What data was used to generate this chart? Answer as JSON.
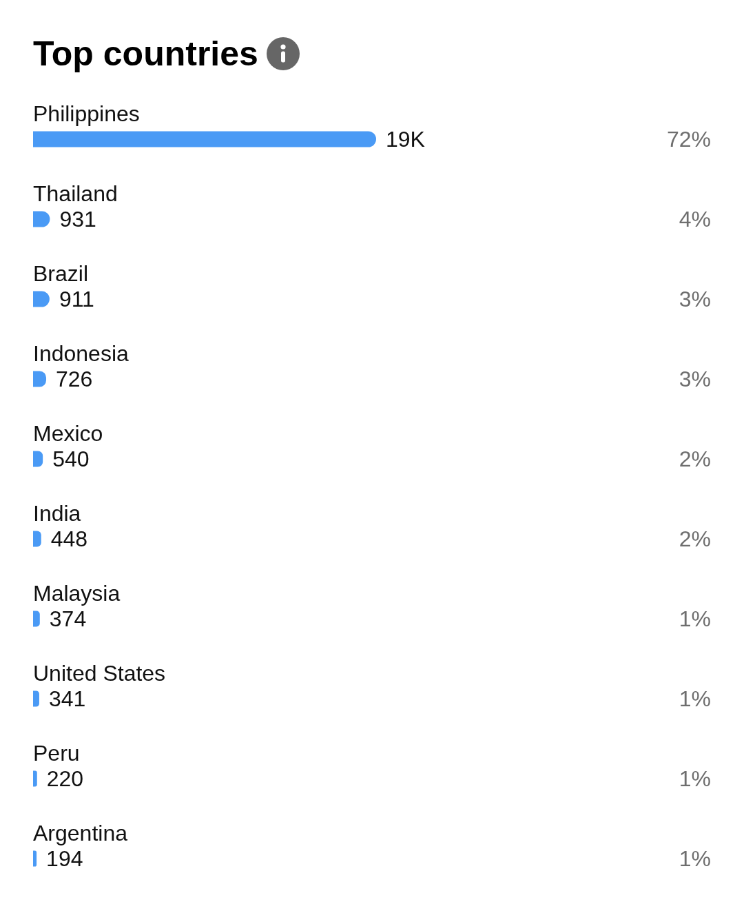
{
  "chart_data": {
    "type": "bar",
    "title": "Top countries",
    "orientation": "horizontal",
    "categories": [
      "Philippines",
      "Thailand",
      "Brazil",
      "Indonesia",
      "Mexico",
      "India",
      "Malaysia",
      "United States",
      "Peru",
      "Argentina"
    ],
    "values": [
      19000,
      931,
      911,
      726,
      540,
      448,
      374,
      341,
      220,
      194
    ],
    "value_labels": [
      "19K",
      "931",
      "911",
      "726",
      "540",
      "448",
      "374",
      "341",
      "220",
      "194"
    ],
    "color": "#4a9af5",
    "tick_labels": "y",
    "annotations": [
      "72%",
      "4%",
      "3%",
      "3%",
      "2%",
      "2%",
      "1%",
      "1%",
      "1%",
      "1%"
    ]
  }
}
